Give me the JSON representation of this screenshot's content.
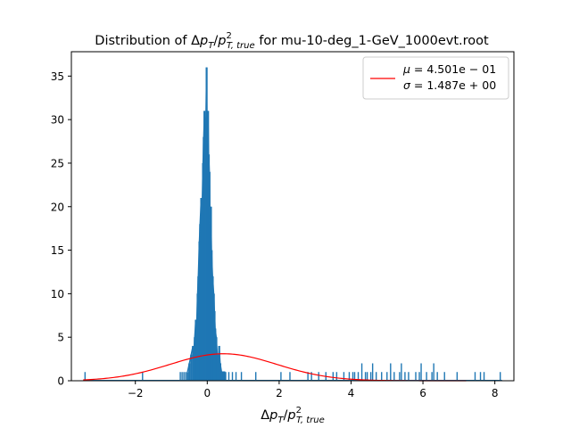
{
  "chart_data": {
    "type": "histogram",
    "title": {
      "prefix": "Distribution of Δ",
      "p1": "p",
      "sub1": "T",
      "slash": "/",
      "p2": "p",
      "sup2": "2",
      "sub2": "T, true",
      "suffix": " for mu-10-deg_1-GeV_1000evt.root"
    },
    "xlabel": {
      "delta": "Δ",
      "p1": "p",
      "sub1": "T",
      "slash": "/",
      "p2": "p",
      "sup2": "2",
      "sub2": "T, true"
    },
    "ylabel": "",
    "xlim": [
      -3.78,
      8.53
    ],
    "ylim": [
      0,
      37.8
    ],
    "x_ticks": [
      -2,
      0,
      2,
      4,
      6,
      8
    ],
    "x_tick_labels": [
      "−2",
      "0",
      "2",
      "4",
      "6",
      "8"
    ],
    "y_ticks": [
      0,
      5,
      10,
      15,
      20,
      25,
      30,
      35
    ],
    "y_tick_labels": [
      "0",
      "5",
      "10",
      "15",
      "20",
      "25",
      "30",
      "35"
    ],
    "grid": false,
    "legend_position": "top-right",
    "legend": [
      {
        "symbol": "μ",
        "value": " = 4.501e − 01"
      },
      {
        "symbol": "σ",
        "value": " = 1.487e + 00"
      }
    ],
    "colors": {
      "histogram": "#1f77b4",
      "fit": "#ff0000"
    },
    "fit": {
      "type": "gaussian",
      "mu": 0.4501,
      "sigma": 1.487,
      "amplitude": 3.1
    },
    "peak": {
      "x": [
        -0.55,
        -0.5,
        -0.45,
        -0.4,
        -0.38,
        -0.35,
        -0.32,
        -0.3,
        -0.27,
        -0.25,
        -0.22,
        -0.2,
        -0.17,
        -0.15,
        -0.12,
        -0.1,
        -0.08,
        -0.06,
        -0.04,
        -0.02,
        0.0,
        0.02,
        0.04,
        0.06,
        0.08,
        0.1,
        0.12,
        0.15,
        0.18,
        0.2,
        0.22,
        0.25,
        0.28,
        0.3,
        0.33,
        0.36,
        0.4,
        0.45,
        0.5
      ],
      "counts": [
        1,
        2,
        3,
        4,
        3,
        5,
        7,
        6,
        10,
        12,
        16,
        18,
        21,
        19,
        25,
        28,
        31,
        29,
        30,
        36,
        27,
        31,
        26,
        24,
        18,
        20,
        15,
        12,
        10,
        8,
        6,
        5,
        3,
        2,
        4,
        2,
        1,
        1,
        1
      ]
    },
    "sparse_singles": [
      -3.4,
      -1.8,
      -0.75,
      -0.7,
      -0.65,
      -0.6,
      0.6,
      0.7,
      0.8,
      0.95,
      1.35,
      2.05,
      2.3,
      2.8,
      2.9,
      3.1,
      3.5,
      3.8,
      3.95,
      4.05,
      4.1,
      4.2,
      4.4,
      4.45,
      4.55,
      4.7,
      4.85,
      5.0,
      5.2,
      5.35,
      5.5,
      5.6,
      5.8,
      5.9,
      6.1,
      6.25,
      6.4,
      6.6,
      6.95,
      7.45,
      7.6,
      7.7,
      8.15
    ],
    "sparse_multi": [
      {
        "x": 3.3,
        "count": 1
      },
      {
        "x": 3.6,
        "count": 1
      },
      {
        "x": 4.3,
        "count": 2
      },
      {
        "x": 4.6,
        "count": 2
      },
      {
        "x": 5.1,
        "count": 2
      },
      {
        "x": 5.4,
        "count": 2
      },
      {
        "x": 5.95,
        "count": 2
      },
      {
        "x": 6.3,
        "count": 2
      }
    ]
  }
}
